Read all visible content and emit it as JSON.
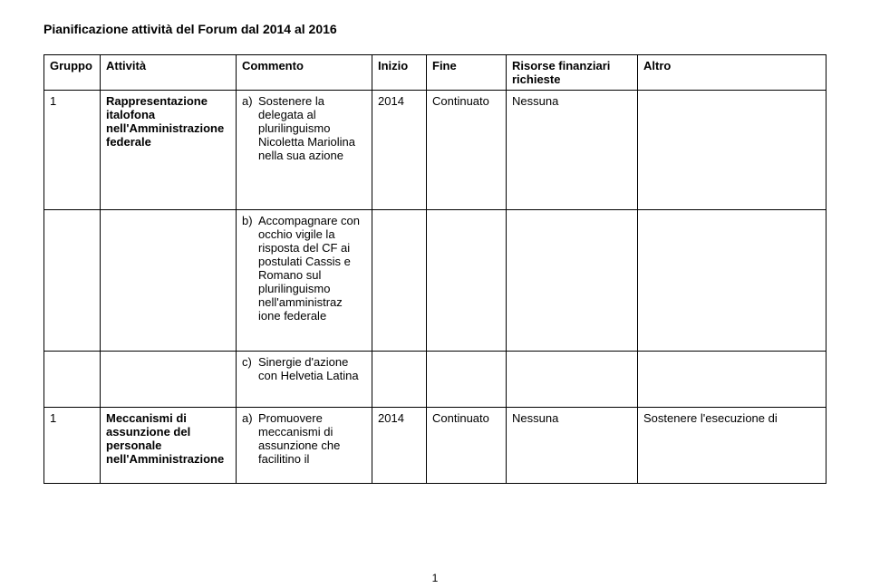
{
  "doc": {
    "title": "Pianificazione attività del Forum dal 2014 al 2016",
    "page_number": "1"
  },
  "table": {
    "headers": {
      "gruppo": "Gruppo",
      "attivita": "Attività",
      "commento": "Commento",
      "inizio": "Inizio",
      "fine": "Fine",
      "risorse": "Risorse finanziari richieste",
      "altro": "Altro"
    },
    "rows": [
      {
        "gruppo": "1",
        "attivita": "Rappresentazione italofona nell'Amministrazione federale",
        "commento_marker": "a)",
        "commento_text": "Sostenere la delegata al plurilinguismo Nicoletta Mariolina nella sua azione",
        "inizio": "2014",
        "fine": "Continuato",
        "risorse": "Nessuna",
        "altro": ""
      },
      {
        "gruppo": "",
        "attivita": "",
        "commento_marker": "b)",
        "commento_text": "Accompagnare con occhio vigile la risposta del CF ai postulati Cassis e Romano sul plurilinguismo nell'amministraz ione federale",
        "inizio": "",
        "fine": "",
        "risorse": "",
        "altro": ""
      },
      {
        "gruppo": "",
        "attivita": "",
        "commento_marker": "c)",
        "commento_text": "Sinergie d'azione con Helvetia Latina",
        "inizio": "",
        "fine": "",
        "risorse": "",
        "altro": ""
      },
      {
        "gruppo": "1",
        "attivita": "Meccanismi di assunzione del personale nell'Amministrazione",
        "commento_marker": "a)",
        "commento_text": "Promuovere meccanismi di assunzione che facilitino il",
        "inizio": "2014",
        "fine": "Continuato",
        "risorse": "Nessuna",
        "altro": "Sostenere l'esecuzione di"
      }
    ]
  },
  "style": {
    "page_bg": "#ffffff",
    "text_color": "#000000",
    "border_color": "#000000",
    "font_family": "Arial",
    "font_size_body": 13,
    "font_size_title": 14
  }
}
